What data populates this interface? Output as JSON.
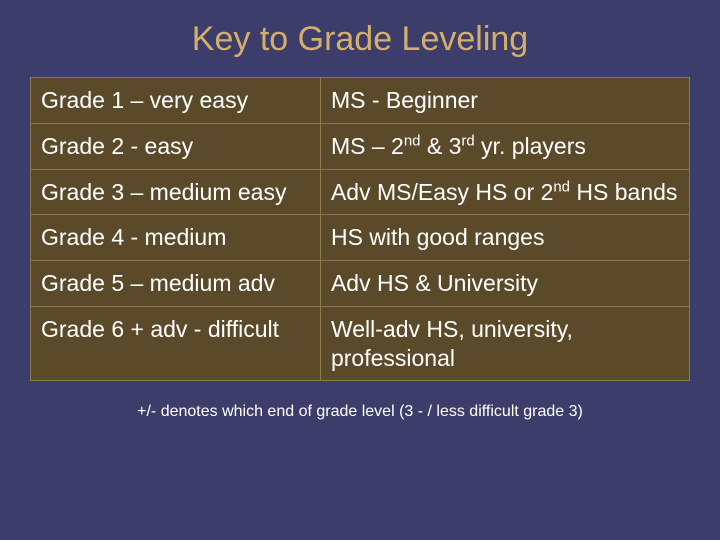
{
  "title": "Key to Grade Leveling",
  "styling": {
    "background_color": "#3d3d6b",
    "title_color": "#d4af6a",
    "title_fontsize": 34,
    "table_background": "#5a4a2a",
    "table_border_color": "#8a7a4a",
    "cell_text_color": "#ffffff",
    "cell_fontsize": 23,
    "footnote_color": "#ffffff",
    "footnote_fontsize": 16,
    "col1_width_pct": 44
  },
  "rows": [
    {
      "grade": "Grade 1 – very easy",
      "desc": "MS - Beginner"
    },
    {
      "grade": "Grade 2 - easy",
      "desc": "MS – 2nd & 3rd yr. players",
      "desc_html": "MS – 2<sup>nd</sup> & 3<sup>rd</sup> yr. players"
    },
    {
      "grade": "Grade 3 – medium easy",
      "desc": "Adv MS/Easy HS or 2nd HS bands",
      "desc_html": "Adv MS/Easy HS or 2<sup>nd</sup> HS bands"
    },
    {
      "grade": "Grade 4 - medium",
      "desc": "HS with good ranges"
    },
    {
      "grade": "Grade 5 – medium adv",
      "desc": "Adv HS & University"
    },
    {
      "grade": "Grade 6 + adv - difficult",
      "desc": "Well-adv HS, university, professional"
    }
  ],
  "footnote": "+/- denotes which end of grade level (3 - / less difficult grade 3)"
}
